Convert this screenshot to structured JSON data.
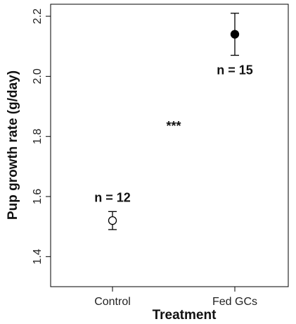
{
  "chart_data": {
    "type": "scatter",
    "xlabel": "Treatment",
    "ylabel": "Pup growth rate (g/day)",
    "categories": [
      "Control",
      "Fed GCs"
    ],
    "ylim": [
      1.3,
      2.24
    ],
    "yticks": [
      "1.4",
      "1.6",
      "1.8",
      "2.0",
      "2.2"
    ],
    "grid": false,
    "points": [
      {
        "category": "Control",
        "y": 1.52,
        "err_low": 1.49,
        "err_high": 1.55,
        "marker": "open-circle",
        "label": "n = 12"
      },
      {
        "category": "Fed GCs",
        "y": 2.14,
        "err_low": 2.07,
        "err_high": 2.21,
        "marker": "filled-circle",
        "label": "n = 15"
      }
    ],
    "annotations": [
      {
        "text": "***",
        "y": 1.835
      }
    ]
  }
}
